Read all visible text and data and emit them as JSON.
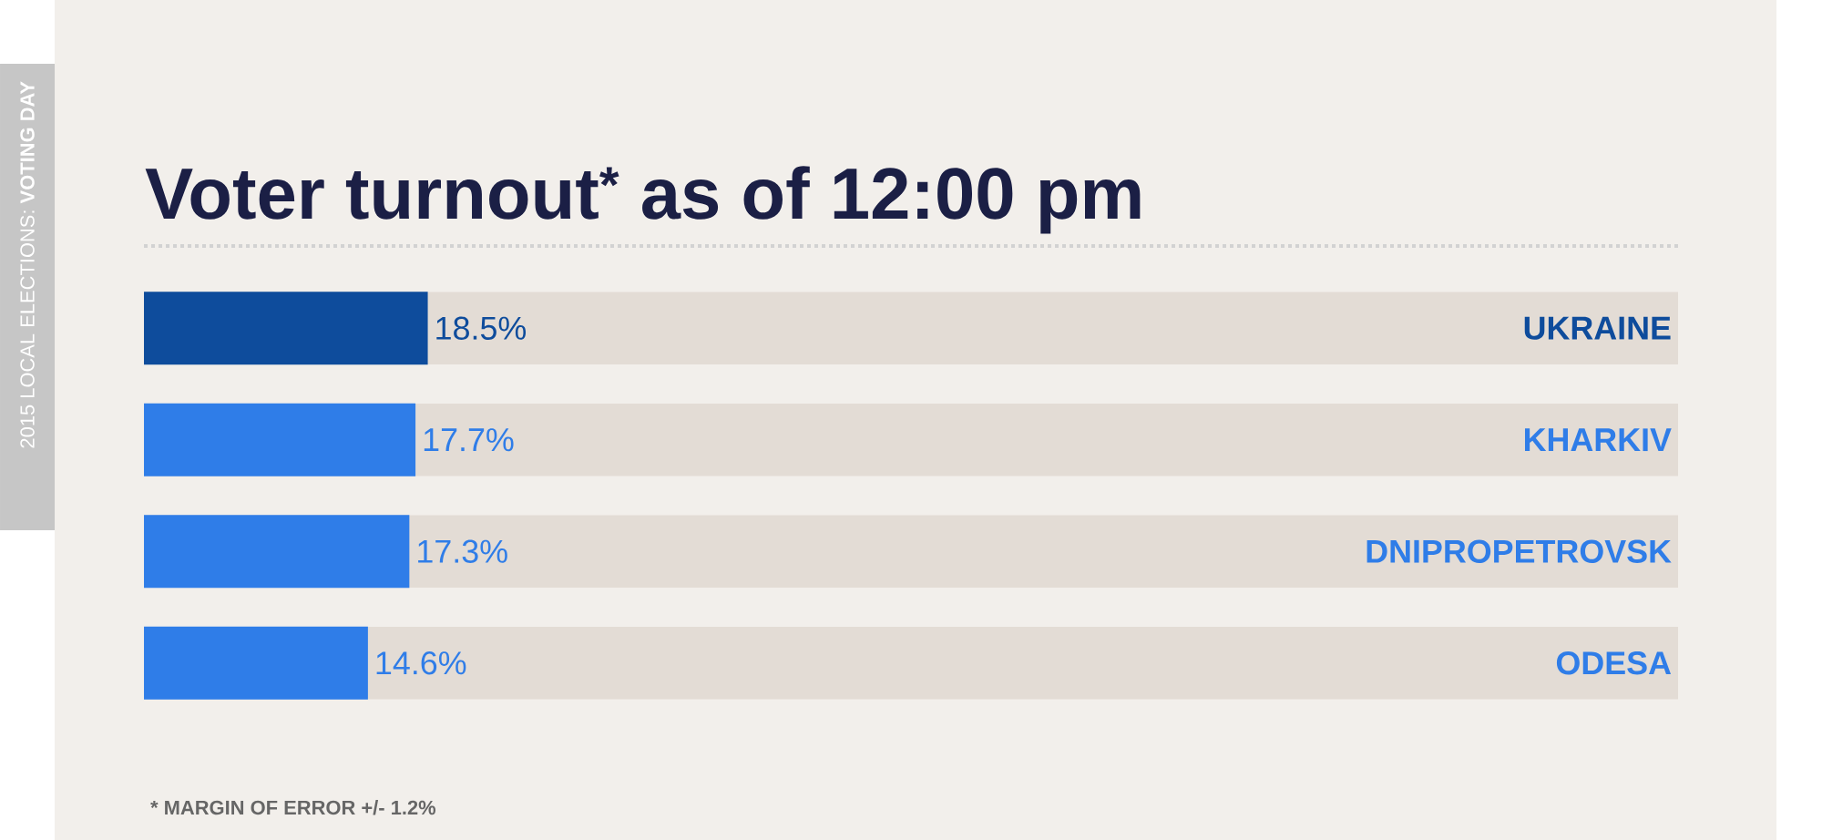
{
  "chart_data": {
    "type": "bar",
    "orientation": "horizontal",
    "title": "Voter turnout$^{*}$ as of 12:00 pm",
    "subtitle": "2015 LOCAL ELECTIONS: **VOTING DAY**",
    "categories": [
      "UKRAINE",
      "KHARKIV",
      "DNIPROPETROVSK",
      "ODESA"
    ],
    "values": [
      18.5,
      17.7,
      17.3,
      14.6
    ],
    "colors": [
      "#0e4c9c",
      "#2f7de8",
      "#2f7de8",
      "#2f7de8"
    ],
    "value_labels": [
      "18.5%",
      "17.7%",
      "17.3%",
      "14.6%"
    ],
    "xlim": [
      0,
      100
    ],
    "annotations": [
      "* MARGIN OF ERROR +/- 1.2%"
    ]
  }
}
